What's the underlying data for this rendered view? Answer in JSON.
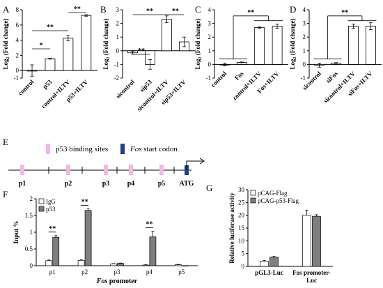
{
  "chart_data": [
    {
      "panel": "A",
      "type": "bar",
      "ylabel": "Log2 (Fold change)",
      "ylim": [
        -1,
        8
      ],
      "yticks": [
        -1,
        0,
        2,
        4,
        6,
        8
      ],
      "categories": [
        "control",
        "p53",
        "control+ILTV",
        "p53+ILTV"
      ],
      "values": [
        0.0,
        1.55,
        4.25,
        7.25
      ],
      "errors": [
        0.75,
        0.05,
        0.35,
        0.1
      ],
      "significance": [
        {
          "from": 0,
          "to": 1,
          "label": "*"
        },
        {
          "from": 0,
          "to": 2,
          "label": "**"
        },
        {
          "from": 2,
          "to": 3,
          "label": "**"
        }
      ]
    },
    {
      "panel": "B",
      "type": "bar",
      "ylabel": "Log2 (Fold change)",
      "ylim": [
        -2,
        3
      ],
      "yticks": [
        -2,
        -1,
        0,
        1,
        2,
        3
      ],
      "categories": [
        "sicontrol",
        "sip53",
        "sicontrol+ILTV",
        "sip53+ILTV"
      ],
      "values": [
        -0.15,
        -1.0,
        2.3,
        0.65
      ],
      "errors": [
        0.1,
        0.35,
        0.25,
        0.35
      ],
      "significance": [
        {
          "from": 0,
          "to": 1,
          "label": "**"
        },
        {
          "from": 0,
          "to": 2,
          "label": "**"
        },
        {
          "from": 2,
          "to": 3,
          "label": "**"
        }
      ]
    },
    {
      "panel": "C",
      "type": "bar",
      "ylabel": "Log2 (Fold change)",
      "ylim": [
        -1,
        4
      ],
      "yticks": [
        -1,
        0,
        1,
        2,
        3,
        4
      ],
      "categories": [
        "control",
        "Fos",
        "control+ILTV",
        "Fos+ILTV"
      ],
      "values": [
        0.0,
        0.15,
        2.7,
        2.8
      ],
      "errors": [
        0.1,
        0.03,
        0.05,
        0.15
      ],
      "significance": [
        {
          "group": [
            0,
            1
          ],
          "vs": [
            2,
            3
          ],
          "label": "**"
        }
      ]
    },
    {
      "panel": "D",
      "type": "bar",
      "ylabel": "Log2 (Fold change)",
      "ylim": [
        -1,
        4
      ],
      "yticks": [
        -1,
        0,
        1,
        2,
        3,
        4
      ],
      "categories": [
        "sicontrol",
        "siFos",
        "sicontrol+ILTV",
        "siFos+ILTV"
      ],
      "values": [
        -0.05,
        0.1,
        2.8,
        2.8
      ],
      "errors": [
        0.15,
        0.03,
        0.15,
        0.25
      ],
      "significance": [
        {
          "group": [
            0,
            1
          ],
          "vs": [
            2,
            3
          ],
          "label": "**"
        }
      ]
    },
    {
      "panel": "F",
      "type": "bar",
      "ylabel": "Input %",
      "xlabel_italic": "Fos",
      "xlabel_rest": " promoter",
      "ylim": [
        0,
        2
      ],
      "yticks": [
        0,
        0.5,
        1,
        1.5,
        2
      ],
      "categories": [
        "p1",
        "p2",
        "p3",
        "p4",
        "p5"
      ],
      "legend_position": "top-left",
      "series": [
        {
          "name": "IgG",
          "color": "#ffffff",
          "values": [
            0.15,
            0.16,
            0.05,
            0.02,
            0.03
          ],
          "errors": [
            0.02,
            0.02,
            0.01,
            0.01,
            0.01
          ]
        },
        {
          "name": "p53",
          "color": "#7f7f7f",
          "values": [
            0.85,
            1.65,
            0.07,
            0.86,
            0.0
          ],
          "errors": [
            0.05,
            0.05,
            0.01,
            0.17,
            0.0
          ]
        }
      ],
      "significance": [
        {
          "category": 0,
          "label": "**"
        },
        {
          "category": 1,
          "label": "**"
        },
        {
          "category": 3,
          "label": "**"
        }
      ]
    },
    {
      "panel": "G",
      "type": "bar",
      "ylabel": "Relative luciferase activity",
      "ylim": [
        0,
        30
      ],
      "yticks": [
        0,
        5,
        10,
        15,
        20,
        25,
        30
      ],
      "categories": [
        "pGL3-Luc",
        "Fos promoter-\nLuc"
      ],
      "legend_position": "top-left",
      "series": [
        {
          "name": "pCAG-Flag",
          "color": "#ffffff",
          "values": [
            2.0,
            20.0
          ],
          "errors": [
            0.3,
            2.0
          ]
        },
        {
          "name": "pCAG-p53-Flag",
          "color": "#7f7f7f",
          "values": [
            3.6,
            19.6
          ],
          "errors": [
            0.3,
            0.6
          ]
        }
      ]
    }
  ],
  "diagram_e": {
    "panel": "E",
    "legend_binding": "p53 binding sites",
    "legend_start_italic": "Fos",
    "legend_start_rest": " start codon",
    "binding_color": "#f2b8e6",
    "start_color": "#203f8a",
    "sites": [
      "p1",
      "p2",
      "p3",
      "p4",
      "p5"
    ],
    "start_label": "ATG"
  }
}
